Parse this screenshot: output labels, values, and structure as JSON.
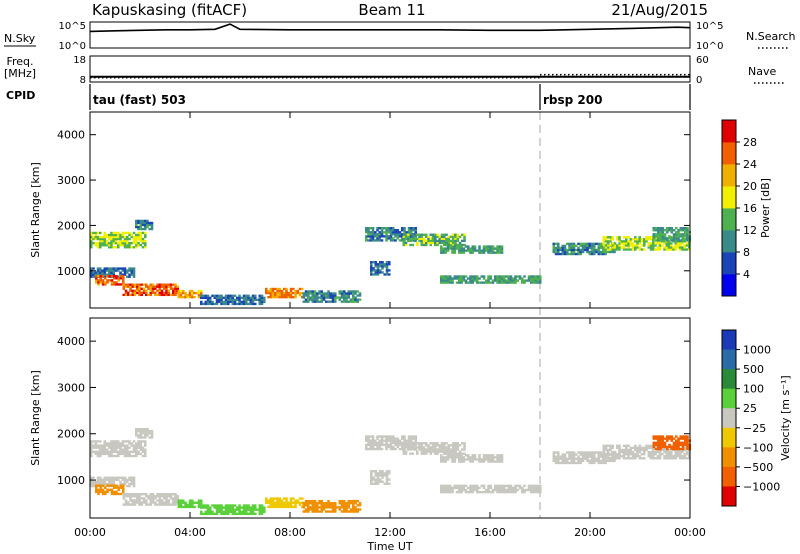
{
  "header": {
    "radar": "Kapuskasing (fitACF)",
    "beam": "Beam 11",
    "date": "21/Aug/2015"
  },
  "noise_panel": {
    "left_label": "N.Sky",
    "right_label": "N.Search",
    "left_ticks": [
      "10^5",
      "10^0"
    ],
    "right_ticks": [
      "10^5",
      "10^0"
    ]
  },
  "freq_panel": {
    "left_label_line1": "Freq.",
    "left_label_line2": "[MHz]",
    "right_label": "Nave",
    "left_ticks": [
      "18",
      "8"
    ],
    "right_ticks": [
      "60",
      "0"
    ],
    "freq_value": 10,
    "nave_segments": [
      {
        "start_hour": 0,
        "end_hour": 18,
        "value": 10
      },
      {
        "start_hour": 18,
        "end_hour": 24,
        "value": 17
      }
    ]
  },
  "cpid_panel": {
    "label": "CPID",
    "programs": [
      {
        "name": "tau (fast) 503",
        "start_hour": 0
      },
      {
        "name": "rbsp 200",
        "start_hour": 18
      }
    ]
  },
  "x_axis": {
    "title": "Time UT",
    "ticks": [
      "00:00",
      "04:00",
      "08:00",
      "12:00",
      "16:00",
      "20:00",
      "00:00"
    ]
  },
  "power_panel": {
    "ylabel": "Slant Range [km]",
    "yticks": [
      "1000",
      "2000",
      "3000",
      "4000"
    ],
    "colorbar_label": "Power [dB]",
    "colorbar_ticks": [
      "4",
      "8",
      "12",
      "16",
      "20",
      "24",
      "28"
    ]
  },
  "velocity_panel": {
    "ylabel": "Slant Range [km]",
    "yticks": [
      "1000",
      "2000",
      "3000",
      "4000"
    ],
    "colorbar_label": "Velocity  [m s⁻¹]",
    "colorbar_ticks": [
      "1000",
      "500",
      "100",
      "25",
      "−25",
      "−100",
      "−500",
      "−1000"
    ]
  },
  "colors": {
    "power_scale": [
      "#0000ee",
      "#1a44b8",
      "#3a8a8a",
      "#4fb04f",
      "#f0f000",
      "#f0b000",
      "#f06000",
      "#e00000"
    ],
    "velocity_scale": [
      "#1a3ab8",
      "#2a6aa8",
      "#2a8a3a",
      "#5ad03a",
      "#c8c8c0",
      "#f0c800",
      "#f09000",
      "#f06000",
      "#e00000"
    ],
    "cpid_divider": "#aaaaaa"
  },
  "chart_data": {
    "type": "heatmap",
    "x_unit": "hours UT",
    "xlim": [
      0,
      24
    ],
    "ylim": [
      180,
      4500
    ],
    "noise_sky_log10": [
      [
        0,
        3.2
      ],
      [
        1,
        3.3
      ],
      [
        2,
        3.4
      ],
      [
        3,
        3.5
      ],
      [
        4,
        3.5
      ],
      [
        5,
        3.6
      ],
      [
        5.6,
        4.6
      ],
      [
        6,
        3.6
      ],
      [
        8,
        3.5
      ],
      [
        10,
        3.5
      ],
      [
        10.8,
        3.5
      ],
      [
        12,
        3.5
      ],
      [
        14,
        3.5
      ],
      [
        16,
        3.4
      ],
      [
        18,
        3.4
      ],
      [
        20,
        3.6
      ],
      [
        22,
        3.8
      ],
      [
        23.5,
        4.0
      ],
      [
        24,
        3.9
      ]
    ],
    "power_regions": [
      {
        "t": [
          0,
          2.2
        ],
        "r": [
          1500,
          1850
        ],
        "power": 16
      },
      {
        "t": [
          1.8,
          2.5
        ],
        "r": [
          1900,
          2100
        ],
        "power": 10
      },
      {
        "t": [
          0,
          1.8
        ],
        "r": [
          850,
          1050
        ],
        "power": 8
      },
      {
        "t": [
          0.2,
          1.3
        ],
        "r": [
          680,
          900
        ],
        "power": 26
      },
      {
        "t": [
          1.3,
          3.5
        ],
        "r": [
          450,
          720
        ],
        "power": 26
      },
      {
        "t": [
          3.5,
          4.4
        ],
        "r": [
          400,
          580
        ],
        "power": 22
      },
      {
        "t": [
          4.4,
          7
        ],
        "r": [
          250,
          450
        ],
        "power": 8
      },
      {
        "t": [
          7,
          8.5
        ],
        "r": [
          400,
          600
        ],
        "power": 24
      },
      {
        "t": [
          8.5,
          10.8
        ],
        "r": [
          300,
          550
        ],
        "power": 10
      },
      {
        "t": [
          11,
          13
        ],
        "r": [
          1650,
          1950
        ],
        "power": 10
      },
      {
        "t": [
          12.5,
          15
        ],
        "r": [
          1550,
          1800
        ],
        "power": 14
      },
      {
        "t": [
          14,
          16.5
        ],
        "r": [
          1380,
          1550
        ],
        "power": 12
      },
      {
        "t": [
          11.2,
          12
        ],
        "r": [
          900,
          1200
        ],
        "power": 8
      },
      {
        "t": [
          14,
          18
        ],
        "r": [
          720,
          880
        ],
        "power": 12
      },
      {
        "t": [
          18.5,
          21
        ],
        "r": [
          1350,
          1600
        ],
        "power": 10
      },
      {
        "t": [
          20.5,
          24
        ],
        "r": [
          1450,
          1750
        ],
        "power": 16
      },
      {
        "t": [
          22.5,
          24
        ],
        "r": [
          1650,
          1950
        ],
        "power": 12
      }
    ],
    "velocity_regions": [
      {
        "t": [
          0,
          2.2
        ],
        "r": [
          1500,
          1850
        ],
        "velocity": 0
      },
      {
        "t": [
          1.8,
          2.5
        ],
        "r": [
          1900,
          2100
        ],
        "velocity": 0
      },
      {
        "t": [
          0,
          1.8
        ],
        "r": [
          850,
          1050
        ],
        "velocity": 0
      },
      {
        "t": [
          0.2,
          1.3
        ],
        "r": [
          680,
          900
        ],
        "velocity": -150
      },
      {
        "t": [
          1.3,
          3.5
        ],
        "r": [
          450,
          720
        ],
        "velocity": 0
      },
      {
        "t": [
          3.5,
          4.4
        ],
        "r": [
          400,
          580
        ],
        "velocity": 60
      },
      {
        "t": [
          4.4,
          7
        ],
        "r": [
          250,
          450
        ],
        "velocity": 60
      },
      {
        "t": [
          7,
          8.5
        ],
        "r": [
          400,
          600
        ],
        "velocity": -60
      },
      {
        "t": [
          8.5,
          10.8
        ],
        "r": [
          300,
          550
        ],
        "velocity": -300
      },
      {
        "t": [
          11,
          13
        ],
        "r": [
          1650,
          1950
        ],
        "velocity": 0
      },
      {
        "t": [
          12.5,
          15
        ],
        "r": [
          1550,
          1800
        ],
        "velocity": 0
      },
      {
        "t": [
          14,
          16.5
        ],
        "r": [
          1380,
          1550
        ],
        "velocity": 0
      },
      {
        "t": [
          11.2,
          12
        ],
        "r": [
          900,
          1200
        ],
        "velocity": 0
      },
      {
        "t": [
          14,
          18
        ],
        "r": [
          720,
          880
        ],
        "velocity": 0
      },
      {
        "t": [
          18.5,
          21
        ],
        "r": [
          1350,
          1600
        ],
        "velocity": 0
      },
      {
        "t": [
          20.5,
          24
        ],
        "r": [
          1450,
          1750
        ],
        "velocity": 0
      },
      {
        "t": [
          22.5,
          24
        ],
        "r": [
          1650,
          1950
        ],
        "velocity": -600
      }
    ]
  }
}
